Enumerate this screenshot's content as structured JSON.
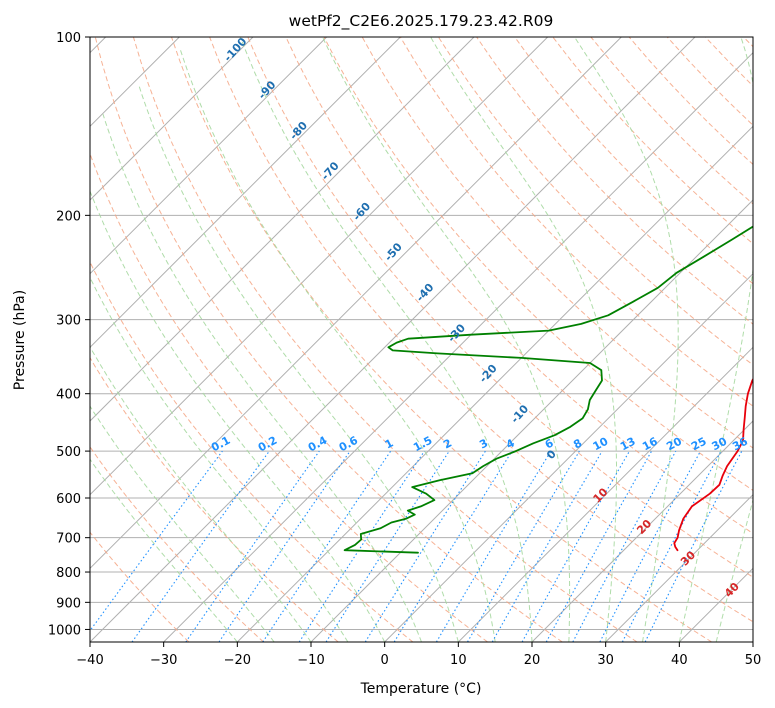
{
  "chart_data": {
    "type": "line",
    "diagram": "skew-T log-P",
    "title": "wetPf2_C2E6.2025.179.23.42.R09",
    "xlabel": "Temperature (°C)",
    "ylabel": "Pressure (hPa)",
    "xlim": [
      -40,
      50
    ],
    "ylim": [
      1050,
      100
    ],
    "y_scale": "log",
    "grid": true,
    "x_ticks": [
      "−40",
      "−30",
      "−20",
      "−10",
      "0",
      "10",
      "20",
      "30",
      "40",
      "50"
    ],
    "y_ticks": [
      "100",
      "200",
      "300",
      "400",
      "500",
      "600",
      "700",
      "800",
      "900",
      "1000"
    ],
    "colors": {
      "temperature": "#e8000b",
      "dewpoint": "#008000",
      "dry_adiabats": "#f4a582",
      "moist_adiabats": "#a6d8a0",
      "mixing_ratio": "#1e90ff",
      "isotherms": "#b0b0b0"
    },
    "series": [
      {
        "role": "temperature",
        "points": [
          {
            "p": 735,
            "t": 27.3
          },
          {
            "p": 725,
            "t": 26.5
          },
          {
            "p": 715,
            "t": 25.9
          },
          {
            "p": 700,
            "t": 25.6
          },
          {
            "p": 680,
            "t": 24.8
          },
          {
            "p": 650,
            "t": 23.8
          },
          {
            "p": 620,
            "t": 23.3
          },
          {
            "p": 590,
            "t": 24.0
          },
          {
            "p": 570,
            "t": 24.1
          },
          {
            "p": 550,
            "t": 23.3
          },
          {
            "p": 530,
            "t": 22.6
          },
          {
            "p": 500,
            "t": 22.0
          },
          {
            "p": 480,
            "t": 21.3
          },
          {
            "p": 460,
            "t": 19.9
          },
          {
            "p": 440,
            "t": 18.5
          },
          {
            "p": 420,
            "t": 17.0
          },
          {
            "p": 400,
            "t": 15.6
          },
          {
            "p": 380,
            "t": 14.4
          },
          {
            "p": 360,
            "t": 13.7
          },
          {
            "p": 340,
            "t": 13.7
          },
          {
            "p": 330,
            "t": 13.4
          },
          {
            "p": 320,
            "t": 12.6
          },
          {
            "p": 300,
            "t": 10.7
          },
          {
            "p": 280,
            "t": 8.7
          },
          {
            "p": 260,
            "t": 7.0
          },
          {
            "p": 240,
            "t": 5.2
          },
          {
            "p": 220,
            "t": 3.6
          },
          {
            "p": 205,
            "t": 2.5
          },
          {
            "p": 190,
            "t": 2.0
          },
          {
            "p": 170,
            "t": 1.5
          },
          {
            "p": 150,
            "t": 0.9
          },
          {
            "p": 135,
            "t": 0.3
          },
          {
            "p": 128,
            "t": 0.2
          },
          {
            "p": 122,
            "t": 0.9
          },
          {
            "p": 115,
            "t": 2.8
          },
          {
            "p": 108,
            "t": 4.3
          },
          {
            "p": 100,
            "t": 5.5
          }
        ]
      },
      {
        "role": "dewpoint",
        "points": [
          {
            "p": 742,
            "t": -7.6
          },
          {
            "p": 735,
            "t": -17.9
          },
          {
            "p": 720,
            "t": -17.2
          },
          {
            "p": 705,
            "t": -17.1
          },
          {
            "p": 690,
            "t": -17.9
          },
          {
            "p": 675,
            "t": -16.0
          },
          {
            "p": 660,
            "t": -15.3
          },
          {
            "p": 650,
            "t": -13.8
          },
          {
            "p": 640,
            "t": -13.2
          },
          {
            "p": 630,
            "t": -14.7
          },
          {
            "p": 620,
            "t": -13.5
          },
          {
            "p": 605,
            "t": -12.5
          },
          {
            "p": 590,
            "t": -14.5
          },
          {
            "p": 575,
            "t": -17.3
          },
          {
            "p": 560,
            "t": -14.5
          },
          {
            "p": 545,
            "t": -11.0
          },
          {
            "p": 530,
            "t": -10.5
          },
          {
            "p": 515,
            "t": -9.7
          },
          {
            "p": 500,
            "t": -8.1
          },
          {
            "p": 485,
            "t": -6.8
          },
          {
            "p": 470,
            "t": -5.0
          },
          {
            "p": 455,
            "t": -4.0
          },
          {
            "p": 440,
            "t": -3.5
          },
          {
            "p": 425,
            "t": -4.0
          },
          {
            "p": 410,
            "t": -5.0
          },
          {
            "p": 395,
            "t": -5.5
          },
          {
            "p": 380,
            "t": -6.0
          },
          {
            "p": 365,
            "t": -7.5
          },
          {
            "p": 355,
            "t": -10.0
          },
          {
            "p": 348,
            "t": -20.0
          },
          {
            "p": 342,
            "t": -32.0
          },
          {
            "p": 338,
            "t": -38.5
          },
          {
            "p": 334,
            "t": -39.5
          },
          {
            "p": 328,
            "t": -39.0
          },
          {
            "p": 323,
            "t": -38.0
          },
          {
            "p": 318,
            "t": -30.0
          },
          {
            "p": 313,
            "t": -20.0
          },
          {
            "p": 305,
            "t": -16.5
          },
          {
            "p": 295,
            "t": -14.0
          },
          {
            "p": 280,
            "t": -12.5
          },
          {
            "p": 265,
            "t": -11.0
          },
          {
            "p": 250,
            "t": -10.5
          },
          {
            "p": 235,
            "t": -9.0
          },
          {
            "p": 220,
            "t": -7.5
          },
          {
            "p": 205,
            "t": -6.0
          },
          {
            "p": 190,
            "t": -5.5
          },
          {
            "p": 175,
            "t": -5.5
          },
          {
            "p": 160,
            "t": -4.9
          },
          {
            "p": 145,
            "t": -3.5
          },
          {
            "p": 135,
            "t": -2.6
          },
          {
            "p": 125,
            "t": -1.6
          },
          {
            "p": 118,
            "t": -1.5
          },
          {
            "p": 112,
            "t": -1.5
          },
          {
            "p": 106,
            "t": -0.5
          },
          {
            "p": 100,
            "t": 0.8
          }
        ]
      }
    ],
    "dry_adiabat_labels": [
      "-100",
      "-90",
      "-80",
      "-70",
      "-60",
      "-50",
      "-40",
      "-30",
      "-20",
      "-10",
      "0"
    ],
    "moist_adiabat_labels": [
      "10",
      "20",
      "30",
      "40"
    ],
    "mixing_ratio_labels": [
      "0.1",
      "0.2",
      "0.4",
      "0.6",
      "1",
      "1.5",
      "2",
      "3",
      "4",
      "6",
      "8",
      "10",
      "13",
      "16",
      "20",
      "25",
      "30",
      "36"
    ]
  }
}
